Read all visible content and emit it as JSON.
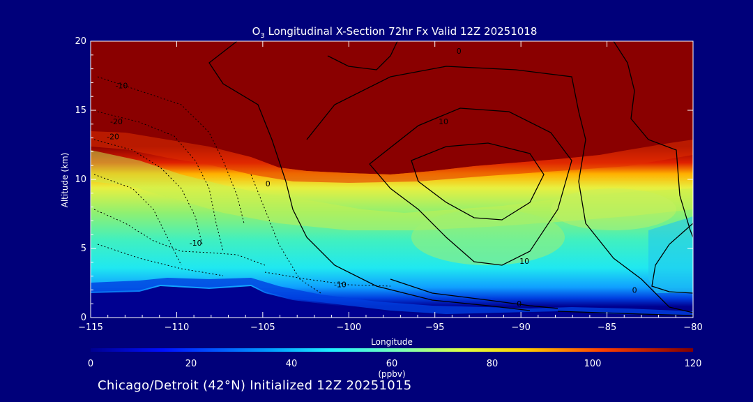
{
  "title_prefix": "O",
  "title_sub": "3",
  "title_rest": " Longitudinal X-Section 72hr  Fx Valid 12Z 20251018",
  "footer": "Chicago/Detroit (42°N) Initialized 12Z 20251015",
  "colorbar": {
    "ticks": [
      "0",
      "20",
      "40",
      "60",
      "80",
      "100",
      "120"
    ],
    "unit": "(ppbv)",
    "range": [
      0,
      120
    ]
  },
  "chart_data": {
    "type": "heatmap",
    "title": "O3 Longitudinal X-Section 72hr  Fx Valid 12Z 20251018",
    "xlabel": "Longitude",
    "ylabel": "Altitude (km)",
    "xlim": [
      -115,
      -80
    ],
    "ylim": [
      0,
      20
    ],
    "x_ticks": [
      "−115",
      "−110",
      "−105",
      "−100",
      "−95",
      "−90",
      "−85",
      "−80"
    ],
    "x_tick_values": [
      -115,
      -110,
      -105,
      -100,
      -95,
      -90,
      -85,
      -80
    ],
    "y_ticks": [
      "0",
      "5",
      "10",
      "15",
      "20"
    ],
    "y_tick_values": [
      0,
      5,
      10,
      15,
      20
    ],
    "colorbar_label": "(ppbv)",
    "contour_labels": [
      {
        "text": "-10",
        "lon": -113.2,
        "alt": 16.6
      },
      {
        "text": "-20",
        "lon": -113.5,
        "alt": 14.0
      },
      {
        "text": "-20",
        "lon": -113.7,
        "alt": 12.9
      },
      {
        "text": "-10",
        "lon": -108.9,
        "alt": 5.2
      },
      {
        "text": "-10",
        "lon": -100.5,
        "alt": 2.2
      },
      {
        "text": "0",
        "lon": -93.6,
        "alt": 19.1
      },
      {
        "text": "0",
        "lon": -104.7,
        "alt": 9.5
      },
      {
        "text": "10",
        "lon": -94.5,
        "alt": 14.0
      },
      {
        "text": "10",
        "lon": -89.8,
        "alt": 3.9
      },
      {
        "text": "0",
        "lon": -90.1,
        "alt": 0.8
      },
      {
        "text": "0",
        "lon": -83.4,
        "alt": 1.8
      }
    ]
  }
}
